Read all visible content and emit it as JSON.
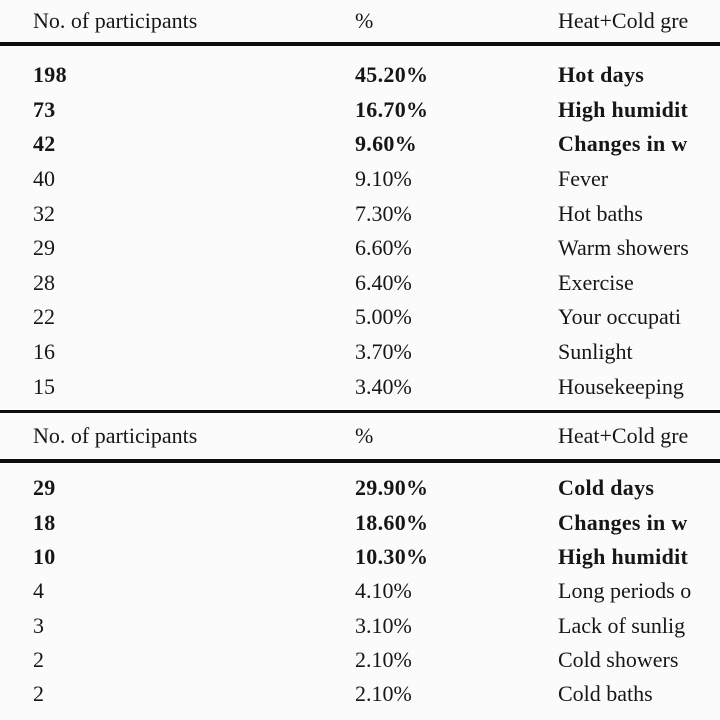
{
  "page_bg": "#fbfbfb",
  "text_color": "#161616",
  "rule_color": "#0d0d0d",
  "chart_data": {
    "type": "table",
    "note": "two stacked table sections, third column clipped at right image edge",
    "sections": [
      {
        "columns": [
          "No. of participants",
          "%",
          "Heat+Cold gre"
        ],
        "rows_numeric": [
          [
            198,
            45.2
          ],
          [
            73,
            16.7
          ],
          [
            42,
            9.6
          ],
          [
            40,
            9.1
          ],
          [
            32,
            7.3
          ],
          [
            29,
            6.6
          ],
          [
            28,
            6.4
          ],
          [
            22,
            5.0
          ],
          [
            16,
            3.7
          ],
          [
            15,
            3.4
          ]
        ]
      },
      {
        "columns": [
          "No. of participants",
          "%",
          "Heat+Cold gre"
        ],
        "rows_numeric": [
          [
            29,
            29.9
          ],
          [
            18,
            18.6
          ],
          [
            10,
            10.3
          ],
          [
            4,
            4.1
          ],
          [
            3,
            3.1
          ],
          [
            2,
            2.1
          ],
          [
            2,
            2.1
          ]
        ]
      }
    ]
  },
  "table": {
    "sections": [
      {
        "header": {
          "participants": "No. of participants",
          "percent": "%",
          "group": "Heat+Cold gre"
        },
        "rows": [
          {
            "n": "198",
            "pct": "45.20%",
            "label": "Hot days",
            "bold": true
          },
          {
            "n": "73",
            "pct": "16.70%",
            "label": "High humidit",
            "bold": true
          },
          {
            "n": "42",
            "pct": "9.60%",
            "label": "Changes in w",
            "bold": true
          },
          {
            "n": "40",
            "pct": "9.10%",
            "label": "Fever",
            "bold": false
          },
          {
            "n": "32",
            "pct": "7.30%",
            "label": "Hot baths",
            "bold": false
          },
          {
            "n": "29",
            "pct": "6.60%",
            "label": "Warm showers",
            "bold": false
          },
          {
            "n": "28",
            "pct": "6.40%",
            "label": "Exercise",
            "bold": false
          },
          {
            "n": "22",
            "pct": "5.00%",
            "label": "Your occupati",
            "bold": false
          },
          {
            "n": "16",
            "pct": "3.70%",
            "label": "Sunlight",
            "bold": false
          },
          {
            "n": "15",
            "pct": "3.40%",
            "label": "Housekeeping",
            "bold": false
          }
        ]
      },
      {
        "header": {
          "participants": "No. of participants",
          "percent": "%",
          "group": "Heat+Cold gre"
        },
        "rows": [
          {
            "n": "29",
            "pct": "29.90%",
            "label": "Cold days",
            "bold": true
          },
          {
            "n": "18",
            "pct": "18.60%",
            "label": "Changes in w",
            "bold": true
          },
          {
            "n": "10",
            "pct": "10.30%",
            "label": "High humidit",
            "bold": true
          },
          {
            "n": "4",
            "pct": "4.10%",
            "label": "Long periods o",
            "bold": false
          },
          {
            "n": "3",
            "pct": "3.10%",
            "label": "Lack of sunlig",
            "bold": false
          },
          {
            "n": "2",
            "pct": "2.10%",
            "label": "Cold showers",
            "bold": false
          },
          {
            "n": "2",
            "pct": "2.10%",
            "label": "Cold baths",
            "bold": false
          }
        ]
      }
    ]
  }
}
